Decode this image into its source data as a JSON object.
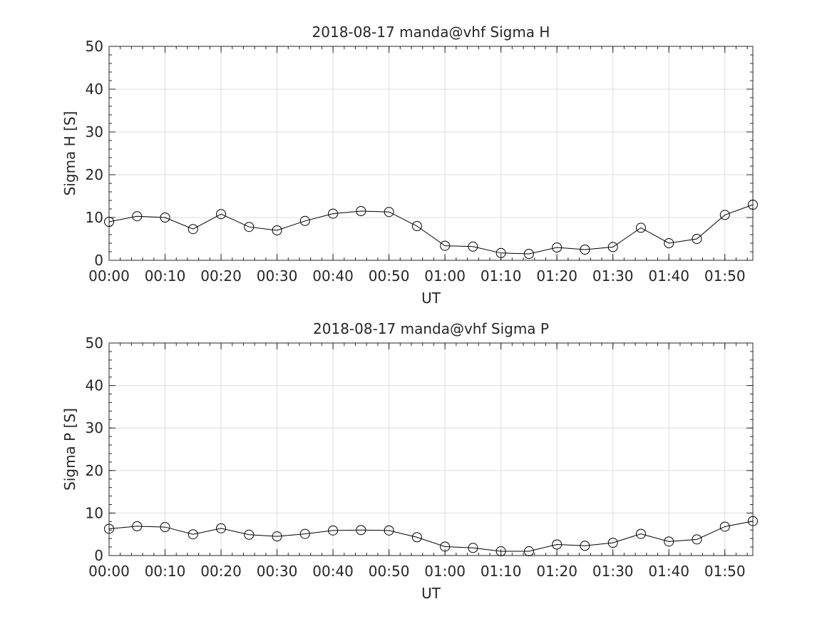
{
  "chart_data": [
    {
      "type": "line",
      "title": "2018-08-17  manda@vhf Sigma H",
      "xlabel": "UT",
      "ylabel": "Sigma H [S]",
      "ylim": [
        0,
        50
      ],
      "yticks": [
        0,
        10,
        20,
        30,
        40,
        50
      ],
      "xlim": [
        "00:00",
        "01:55"
      ],
      "xticks": [
        "00:00",
        "00:10",
        "00:20",
        "00:30",
        "00:40",
        "00:50",
        "01:00",
        "01:10",
        "01:20",
        "01:30",
        "01:40",
        "01:50"
      ],
      "grid": true,
      "marker": "circle",
      "x": [
        "00:00",
        "00:05",
        "00:10",
        "00:15",
        "00:20",
        "00:25",
        "00:30",
        "00:35",
        "00:40",
        "00:45",
        "00:50",
        "00:55",
        "01:00",
        "01:05",
        "01:10",
        "01:15",
        "01:20",
        "01:25",
        "01:30",
        "01:35",
        "01:40",
        "01:45",
        "01:50",
        "01:55"
      ],
      "values": [
        9.0,
        10.3,
        10.0,
        7.3,
        10.8,
        7.8,
        7.0,
        9.2,
        10.9,
        11.5,
        11.3,
        8.0,
        3.4,
        3.2,
        1.7,
        1.5,
        3.0,
        2.5,
        3.1,
        7.6,
        4.0,
        5.0,
        10.6,
        13.0
      ]
    },
    {
      "type": "line",
      "title": "2018-08-17  manda@vhf Sigma P",
      "xlabel": "UT",
      "ylabel": "Sigma P [S]",
      "ylim": [
        0,
        50
      ],
      "yticks": [
        0,
        10,
        20,
        30,
        40,
        50
      ],
      "xlim": [
        "00:00",
        "01:55"
      ],
      "xticks": [
        "00:00",
        "00:10",
        "00:20",
        "00:30",
        "00:40",
        "00:50",
        "01:00",
        "01:10",
        "01:20",
        "01:30",
        "01:40",
        "01:50"
      ],
      "grid": true,
      "marker": "circle",
      "x": [
        "00:00",
        "00:05",
        "00:10",
        "00:15",
        "00:20",
        "00:25",
        "00:30",
        "00:35",
        "00:40",
        "00:45",
        "00:50",
        "00:55",
        "01:00",
        "01:05",
        "01:10",
        "01:15",
        "01:20",
        "01:25",
        "01:30",
        "01:35",
        "01:40",
        "01:45",
        "01:50",
        "01:55"
      ],
      "values": [
        6.3,
        6.9,
        6.7,
        5.0,
        6.4,
        4.9,
        4.5,
        5.1,
        5.9,
        6.0,
        5.9,
        4.3,
        2.1,
        1.8,
        1.0,
        1.0,
        2.6,
        2.3,
        3.0,
        5.1,
        3.3,
        3.8,
        6.8,
        8.1
      ]
    }
  ]
}
